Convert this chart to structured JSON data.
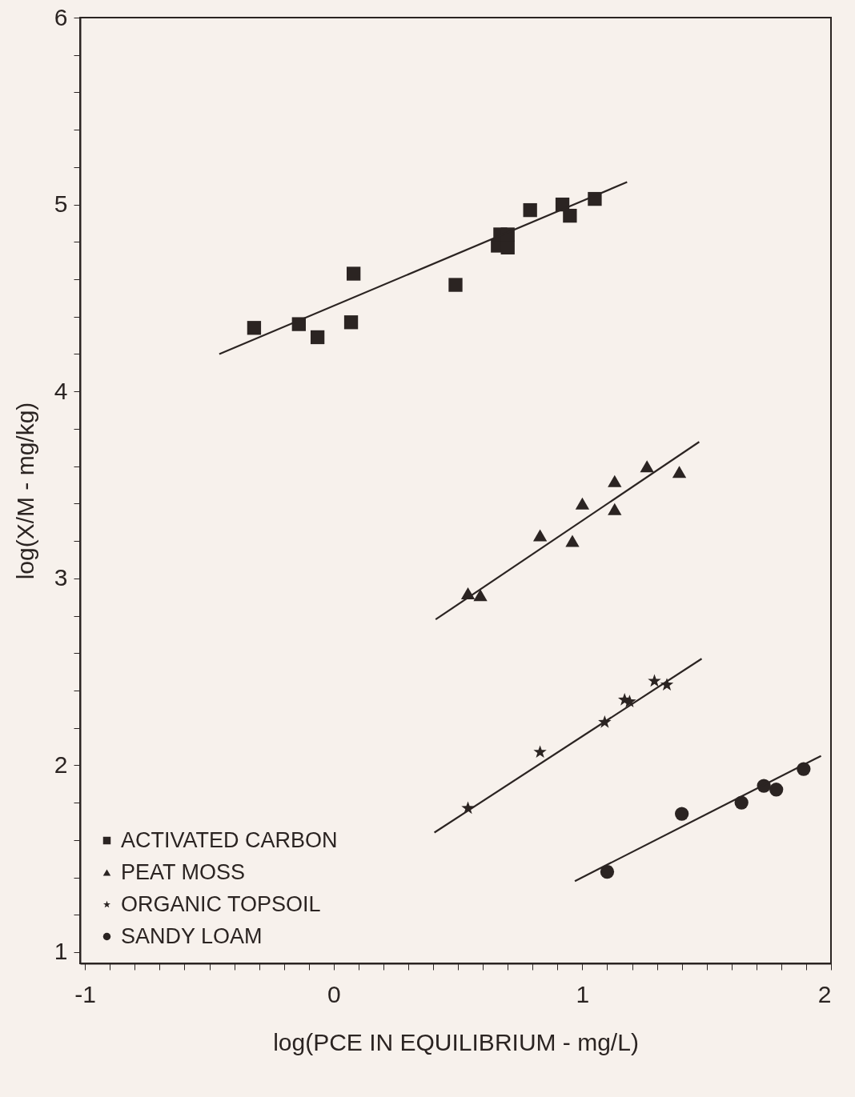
{
  "chart_data": {
    "type": "scatter",
    "xlabel": "log(PCE IN EQUILIBRIUM - mg/L)",
    "ylabel": "log(X/M - mg/kg)",
    "xlim": [
      -1.02,
      2.0
    ],
    "ylim": [
      0.94,
      6.0
    ],
    "xticks": [
      -1,
      {
        "value": -0.9,
        "label": null
      },
      {
        "value": -0.8,
        "label": null
      },
      {
        "value": -0.7,
        "label": null
      },
      {
        "value": -0.6,
        "label": null
      },
      {
        "value": -0.5,
        "label": null
      },
      {
        "value": -0.4,
        "label": null
      },
      {
        "value": -0.3,
        "label": null
      },
      {
        "value": -0.2,
        "label": null
      },
      {
        "value": -0.1,
        "label": null
      },
      0,
      {
        "value": 0.1,
        "label": null
      },
      {
        "value": 0.2,
        "label": null
      },
      {
        "value": 0.3,
        "label": null
      },
      {
        "value": 0.4,
        "label": null
      },
      {
        "value": 0.5,
        "label": null
      },
      {
        "value": 0.6,
        "label": null
      },
      {
        "value": 0.7,
        "label": null
      },
      {
        "value": 0.8,
        "label": null
      },
      {
        "value": 0.9,
        "label": null
      },
      1,
      {
        "value": 1.1,
        "label": null
      },
      {
        "value": 1.2,
        "label": null
      },
      {
        "value": 1.3,
        "label": null
      },
      {
        "value": 1.4,
        "label": null
      },
      {
        "value": 1.5,
        "label": null
      },
      {
        "value": 1.6,
        "label": null
      },
      {
        "value": 1.7,
        "label": null
      },
      {
        "value": 1.8,
        "label": null
      },
      {
        "value": 1.9,
        "label": null
      },
      2
    ],
    "yticks": [
      1,
      {
        "value": 1.2,
        "label": null
      },
      {
        "value": 1.4,
        "label": null
      },
      {
        "value": 1.6,
        "label": null
      },
      {
        "value": 1.8,
        "label": null
      },
      2,
      {
        "value": 2.2,
        "label": null
      },
      {
        "value": 2.4,
        "label": null
      },
      {
        "value": 2.6,
        "label": null
      },
      {
        "value": 2.8,
        "label": null
      },
      3,
      {
        "value": 3.2,
        "label": null
      },
      {
        "value": 3.4,
        "label": null
      },
      {
        "value": 3.6,
        "label": null
      },
      {
        "value": 3.8,
        "label": null
      },
      4,
      {
        "value": 4.2,
        "label": null
      },
      {
        "value": 4.4,
        "label": null
      },
      {
        "value": 4.6,
        "label": null
      },
      {
        "value": 4.8,
        "label": null
      },
      5,
      {
        "value": 5.2,
        "label": null
      },
      {
        "value": 5.4,
        "label": null
      },
      {
        "value": 5.6,
        "label": null
      },
      {
        "value": 5.8,
        "label": null
      },
      6
    ],
    "grid": false,
    "legend": "bottom left",
    "series": [
      {
        "name": "ACTIVATED CARBON",
        "color": "#2b2422",
        "marker": "square",
        "x": [
          -0.32,
          -0.14,
          -0.065,
          0.07,
          0.08,
          0.49,
          0.66,
          0.7,
          0.67,
          0.7,
          0.79,
          0.92,
          0.95,
          1.05
        ],
        "values": [
          4.34,
          4.36,
          4.29,
          4.37,
          4.63,
          4.57,
          4.78,
          4.77,
          4.84,
          4.84,
          4.97,
          5.0,
          4.94,
          5.03
        ]
      },
      {
        "name": "PEAT MOSS",
        "color": "#2b2422",
        "marker": "triangle",
        "x": [
          0.54,
          0.59,
          0.83,
          0.96,
          1.0,
          1.13,
          1.13,
          1.26,
          1.39
        ],
        "values": [
          2.92,
          2.91,
          3.23,
          3.2,
          3.4,
          3.37,
          3.52,
          3.6,
          3.57
        ]
      },
      {
        "name": "ORGANIC TOPSOIL",
        "color": "#2b2422",
        "marker": "star",
        "x": [
          0.54,
          0.83,
          1.09,
          1.17,
          1.19,
          1.29,
          1.34
        ],
        "values": [
          1.77,
          2.07,
          2.23,
          2.35,
          2.34,
          2.45,
          2.43
        ]
      },
      {
        "name": "SANDY LOAM",
        "color": "#2b2422",
        "marker": "circle",
        "x": [
          1.1,
          1.4,
          1.64,
          1.73,
          1.78,
          1.89
        ],
        "values": [
          1.43,
          1.74,
          1.8,
          1.89,
          1.87,
          1.98
        ]
      },
      {
        "type": "line",
        "color": "#2b2422",
        "x": [
          -0.46,
          1.18
        ],
        "values": [
          4.2,
          5.12
        ]
      },
      {
        "type": "line",
        "color": "#2b2422",
        "x": [
          0.41,
          1.47
        ],
        "values": [
          2.78,
          3.73
        ]
      },
      {
        "type": "line",
        "color": "#2b2422",
        "x": [
          0.405,
          1.48
        ],
        "values": [
          1.64,
          2.57
        ]
      },
      {
        "type": "line",
        "color": "#2b2422",
        "x": [
          0.97,
          1.96
        ],
        "values": [
          1.38,
          2.05
        ]
      }
    ]
  }
}
